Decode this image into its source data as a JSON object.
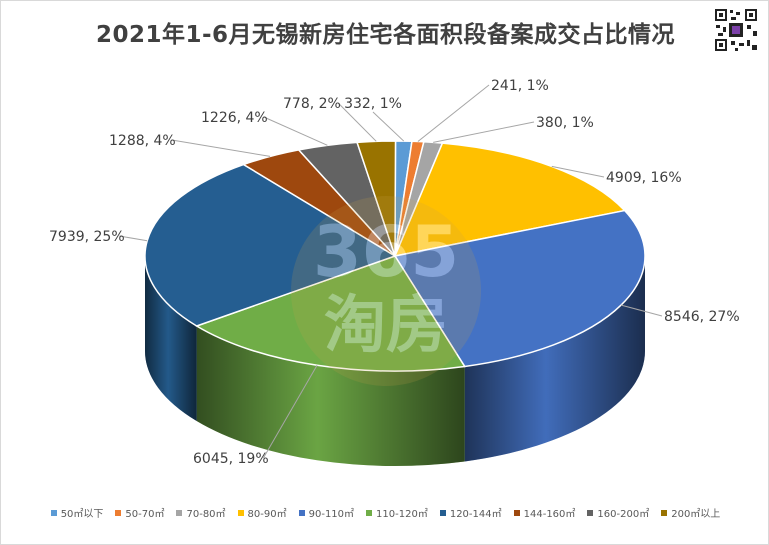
{
  "chart_data": {
    "type": "pie",
    "title": "2021年1-6月无锡新房住宅各面积段备案成交占比情况",
    "categories": [
      "50㎡以下",
      "50-70㎡",
      "70-80㎡",
      "80-90㎡",
      "90-110㎡",
      "110-120㎡",
      "120-144㎡",
      "144-160㎡",
      "160-200㎡",
      "200㎡以上"
    ],
    "values": [
      332,
      241,
      380,
      4909,
      8546,
      6045,
      7939,
      1288,
      1226,
      778
    ],
    "percentages": [
      "1%",
      "1%",
      "1%",
      "16%",
      "27%",
      "19%",
      "25%",
      "4%",
      "4%",
      "2%"
    ],
    "data_labels": [
      "332, 1%",
      "241, 1%",
      "380, 1%",
      "4909, 16%",
      "8546, 27%",
      "6045, 19%",
      "7939, 25%",
      "1288, 4%",
      "1226, 4%",
      "778, 2%"
    ],
    "colors": [
      "#5b9bd5",
      "#ed7d31",
      "#a5a5a5",
      "#ffc000",
      "#4472c4",
      "#70ad47",
      "#255e91",
      "#9e480e",
      "#636363",
      "#997300"
    ],
    "legend_position": "bottom",
    "style": "3d"
  },
  "watermark": {
    "text_top": "365",
    "text_bottom": "淘房"
  }
}
